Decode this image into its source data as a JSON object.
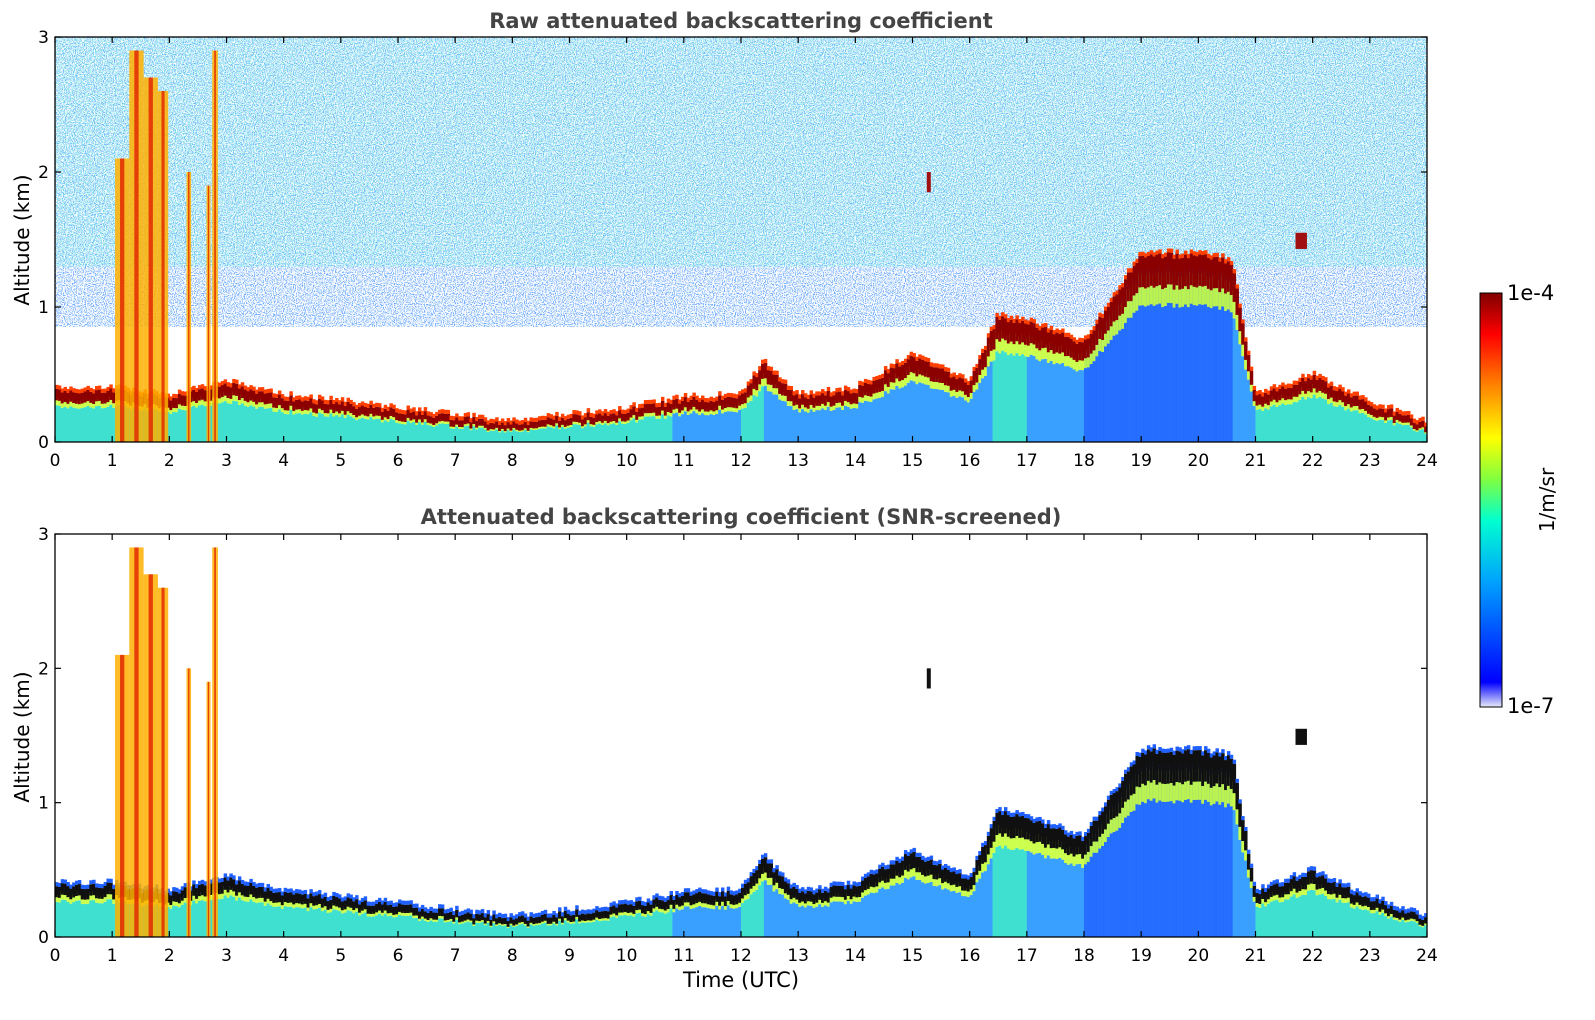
{
  "chart_data": [
    {
      "type": "heatmap",
      "title": "Raw attenuated backscattering coefficient",
      "xlabel": "",
      "ylabel": "Altitude (km)",
      "xlim": [
        0,
        24
      ],
      "ylim": [
        0,
        3
      ],
      "xticks": [
        "0",
        "1",
        "2",
        "3",
        "4",
        "5",
        "6",
        "7",
        "8",
        "9",
        "10",
        "11",
        "12",
        "13",
        "14",
        "15",
        "16",
        "17",
        "18",
        "19",
        "20",
        "21",
        "22",
        "23",
        "24"
      ],
      "yticks": [
        "0",
        "1",
        "2",
        "3"
      ],
      "color_scale": "jet",
      "boundary_layer_top_km": {
        "time_utc": [
          0,
          1,
          2,
          3,
          4,
          5,
          6,
          7,
          8,
          9,
          10,
          11,
          12,
          12.4,
          13,
          14,
          15,
          16,
          16.5,
          17,
          18,
          19,
          20,
          20.6,
          21,
          22,
          23,
          24
        ],
        "height_km": [
          0.35,
          0.35,
          0.3,
          0.4,
          0.3,
          0.25,
          0.2,
          0.15,
          0.1,
          0.15,
          0.2,
          0.28,
          0.3,
          0.55,
          0.3,
          0.35,
          0.6,
          0.4,
          0.9,
          0.85,
          0.7,
          1.35,
          1.35,
          1.3,
          0.3,
          0.45,
          0.25,
          0.1
        ]
      }
    },
    {
      "type": "heatmap",
      "title": "Attenuated backscattering coefficient (SNR-screened)",
      "xlabel": "Time (UTC)",
      "ylabel": "Altitude (km)",
      "xlim": [
        0,
        24
      ],
      "ylim": [
        0,
        3
      ],
      "xticks": [
        "0",
        "1",
        "2",
        "3",
        "4",
        "5",
        "6",
        "7",
        "8",
        "9",
        "10",
        "11",
        "12",
        "13",
        "14",
        "15",
        "16",
        "17",
        "18",
        "19",
        "20",
        "21",
        "22",
        "23",
        "24"
      ],
      "yticks": [
        "0",
        "1",
        "2",
        "3"
      ],
      "color_scale": "jet"
    }
  ],
  "colorbar": {
    "label": "1/m/sr",
    "max_label": "1e-4",
    "min_label": "1e-7",
    "colors": [
      "#e8eaf8",
      "#0000ff",
      "#00a0ff",
      "#00ffd0",
      "#80ff40",
      "#ffff00",
      "#ff8000",
      "#ff0000",
      "#800000"
    ]
  }
}
